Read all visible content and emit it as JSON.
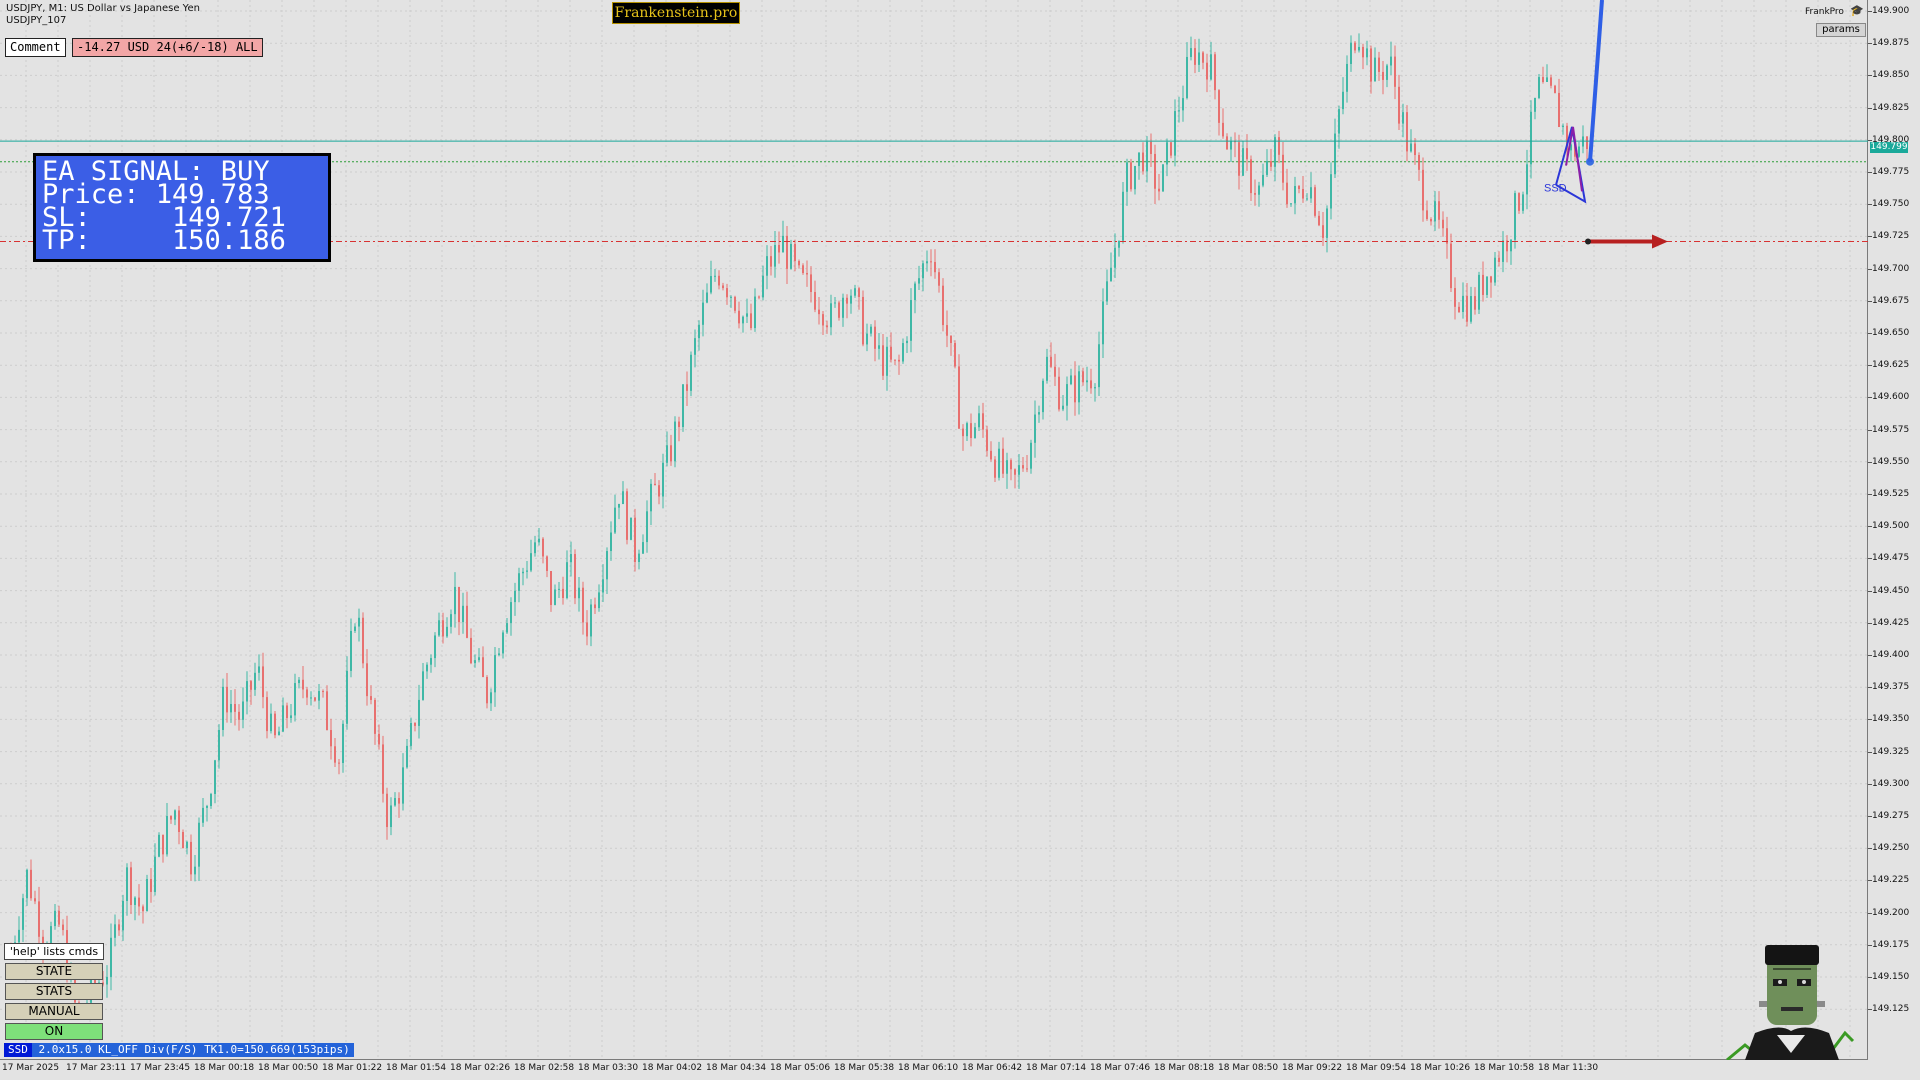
{
  "symbol_line": "USDJPY, M1:  US Dollar vs Japanese Yen",
  "symbol_sub": "USDJPY_107",
  "brand": "Frankenstein.pro",
  "comment_label": "Comment",
  "pnl_text": "-14.27 USD 24(+6/-18) ALL",
  "signal": {
    "line1": "EA SIGNAL: BUY",
    "line2": "Price: 149.783",
    "line3": "SL:     149.721",
    "line4": "TP:     150.186"
  },
  "account_name": "FrankPro",
  "params_label": "params",
  "current_price_tag": "149.799",
  "pattern_label": "SSD",
  "buttons": {
    "help": "'help' lists cmds",
    "state": "STATE",
    "stats": "STATS",
    "manual": "MANUAL",
    "on": "ON"
  },
  "status": {
    "tag": "SSD",
    "text": "2.0x15.0 KL_OFF Div(F/S) TK1.0=150.669(153pips)"
  },
  "colors": {
    "bull": "#3fb8a6",
    "bear": "#e8706f",
    "signal_panel": "#3b5ee6",
    "sl_line": "#d83232",
    "pattern": "#2b36d8",
    "projection": "#2f5fe6"
  },
  "chart_data": {
    "type": "candlestick",
    "title": "",
    "y_ticks": [
      "149.900",
      "149.875",
      "149.850",
      "149.825",
      "149.800",
      "149.775",
      "149.750",
      "149.725",
      "149.700",
      "149.675",
      "149.650",
      "149.625",
      "149.600",
      "149.575",
      "149.550",
      "149.525",
      "149.500",
      "149.475",
      "149.450",
      "149.425",
      "149.400",
      "149.375",
      "149.350",
      "149.325",
      "149.300",
      "149.275",
      "149.250",
      "149.225",
      "149.200",
      "149.175",
      "149.150",
      "149.125"
    ],
    "x_ticks": [
      "17 Mar 2025",
      "17 Mar 23:11",
      "17 Mar 23:45",
      "18 Mar 00:18",
      "18 Mar 00:50",
      "18 Mar 01:22",
      "18 Mar 01:54",
      "18 Mar 02:26",
      "18 Mar 02:58",
      "18 Mar 03:30",
      "18 Mar 04:02",
      "18 Mar 04:34",
      "18 Mar 05:06",
      "18 Mar 05:38",
      "18 Mar 06:10",
      "18 Mar 06:42",
      "18 Mar 07:14",
      "18 Mar 07:46",
      "18 Mar 08:18",
      "18 Mar 08:50",
      "18 Mar 09:22",
      "18 Mar 09:54",
      "18 Mar 10:26",
      "18 Mar 10:58",
      "18 Mar 11:30"
    ],
    "ylim": [
      149.115,
      149.905
    ],
    "close_path": [
      149.17,
      149.23,
      149.18,
      149.19,
      149.12,
      149.14,
      149.16,
      149.23,
      149.2,
      149.25,
      149.28,
      149.24,
      149.29,
      149.37,
      149.35,
      149.39,
      149.33,
      149.36,
      149.38,
      149.36,
      149.32,
      149.44,
      149.35,
      149.27,
      149.31,
      149.38,
      149.42,
      149.45,
      149.4,
      149.37,
      149.43,
      149.46,
      149.49,
      149.44,
      149.47,
      149.42,
      149.47,
      149.53,
      149.48,
      149.52,
      149.55,
      149.6,
      149.66,
      149.7,
      149.68,
      149.65,
      149.7,
      149.72,
      149.69,
      149.68,
      149.66,
      149.69,
      149.65,
      149.63,
      149.62,
      149.68,
      149.72,
      149.65,
      149.57,
      149.58,
      149.55,
      149.53,
      149.56,
      149.63,
      149.6,
      149.61,
      149.62,
      149.7,
      149.77,
      149.79,
      149.76,
      149.82,
      149.87,
      149.86,
      149.8,
      149.78,
      149.76,
      149.79,
      149.75,
      149.77,
      149.73,
      149.83,
      149.89,
      149.85,
      149.86,
      149.8,
      149.76,
      149.73,
      149.68,
      149.67,
      149.7,
      149.72,
      149.76,
      149.84,
      149.83,
      149.79,
      149.8
    ],
    "series": [
      {
        "name": "",
        "type": "price_level",
        "value": 149.799
      },
      {
        "name": "",
        "type": "entry_level",
        "value": 149.783
      },
      {
        "name": "",
        "type": "stop_loss_level",
        "value": 149.721
      }
    ],
    "xlabel": "",
    "ylabel": ""
  }
}
